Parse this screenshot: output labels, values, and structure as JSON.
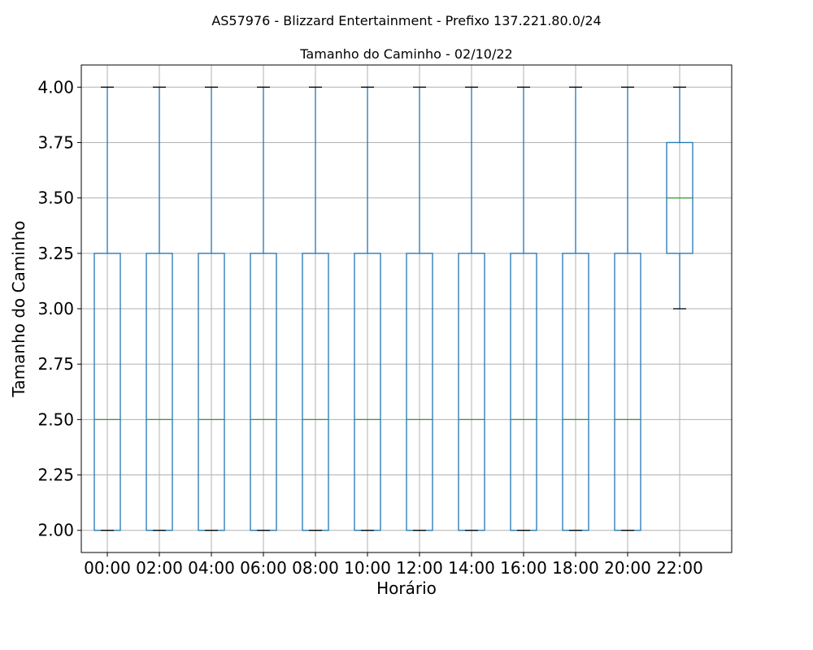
{
  "figure": {
    "suptitle": "AS57976 - Blizzard Entertainment - Prefixo 137.221.80.0/24"
  },
  "chart_data": {
    "type": "box",
    "title": "Tamanho do Caminho - 02/10/22",
    "xlabel": "Horário",
    "ylabel": "Tamanho do Caminho",
    "ylim": [
      1.9,
      4.1
    ],
    "yticks": [
      2.0,
      2.25,
      2.5,
      2.75,
      3.0,
      3.25,
      3.5,
      3.75,
      4.0
    ],
    "ytick_labels": [
      "2.00",
      "2.25",
      "2.50",
      "2.75",
      "3.00",
      "3.25",
      "3.50",
      "3.75",
      "4.00"
    ],
    "grid": true,
    "categories": [
      "00:00",
      "02:00",
      "04:00",
      "06:00",
      "08:00",
      "10:00",
      "12:00",
      "14:00",
      "16:00",
      "18:00",
      "20:00",
      "22:00"
    ],
    "boxes": [
      {
        "whislo": 2.0,
        "q1": 2.0,
        "med": 2.5,
        "q3": 3.25,
        "whishi": 4.0
      },
      {
        "whislo": 2.0,
        "q1": 2.0,
        "med": 2.5,
        "q3": 3.25,
        "whishi": 4.0
      },
      {
        "whislo": 2.0,
        "q1": 2.0,
        "med": 2.5,
        "q3": 3.25,
        "whishi": 4.0
      },
      {
        "whislo": 2.0,
        "q1": 2.0,
        "med": 2.5,
        "q3": 3.25,
        "whishi": 4.0
      },
      {
        "whislo": 2.0,
        "q1": 2.0,
        "med": 2.5,
        "q3": 3.25,
        "whishi": 4.0
      },
      {
        "whislo": 2.0,
        "q1": 2.0,
        "med": 2.5,
        "q3": 3.25,
        "whishi": 4.0
      },
      {
        "whislo": 2.0,
        "q1": 2.0,
        "med": 2.5,
        "q3": 3.25,
        "whishi": 4.0
      },
      {
        "whislo": 2.0,
        "q1": 2.0,
        "med": 2.5,
        "q3": 3.25,
        "whishi": 4.0
      },
      {
        "whislo": 2.0,
        "q1": 2.0,
        "med": 2.5,
        "q3": 3.25,
        "whishi": 4.0
      },
      {
        "whislo": 2.0,
        "q1": 2.0,
        "med": 2.5,
        "q3": 3.25,
        "whishi": 4.0
      },
      {
        "whislo": 2.0,
        "q1": 2.0,
        "med": 2.5,
        "q3": 3.25,
        "whishi": 4.0
      },
      {
        "whislo": 3.0,
        "q1": 3.25,
        "med": 3.5,
        "q3": 3.75,
        "whishi": 4.0
      }
    ],
    "colors": {
      "box": "#1f77b4",
      "median": "#2ca02c",
      "cap": "#000000",
      "grid": "#b0b0b0"
    }
  }
}
